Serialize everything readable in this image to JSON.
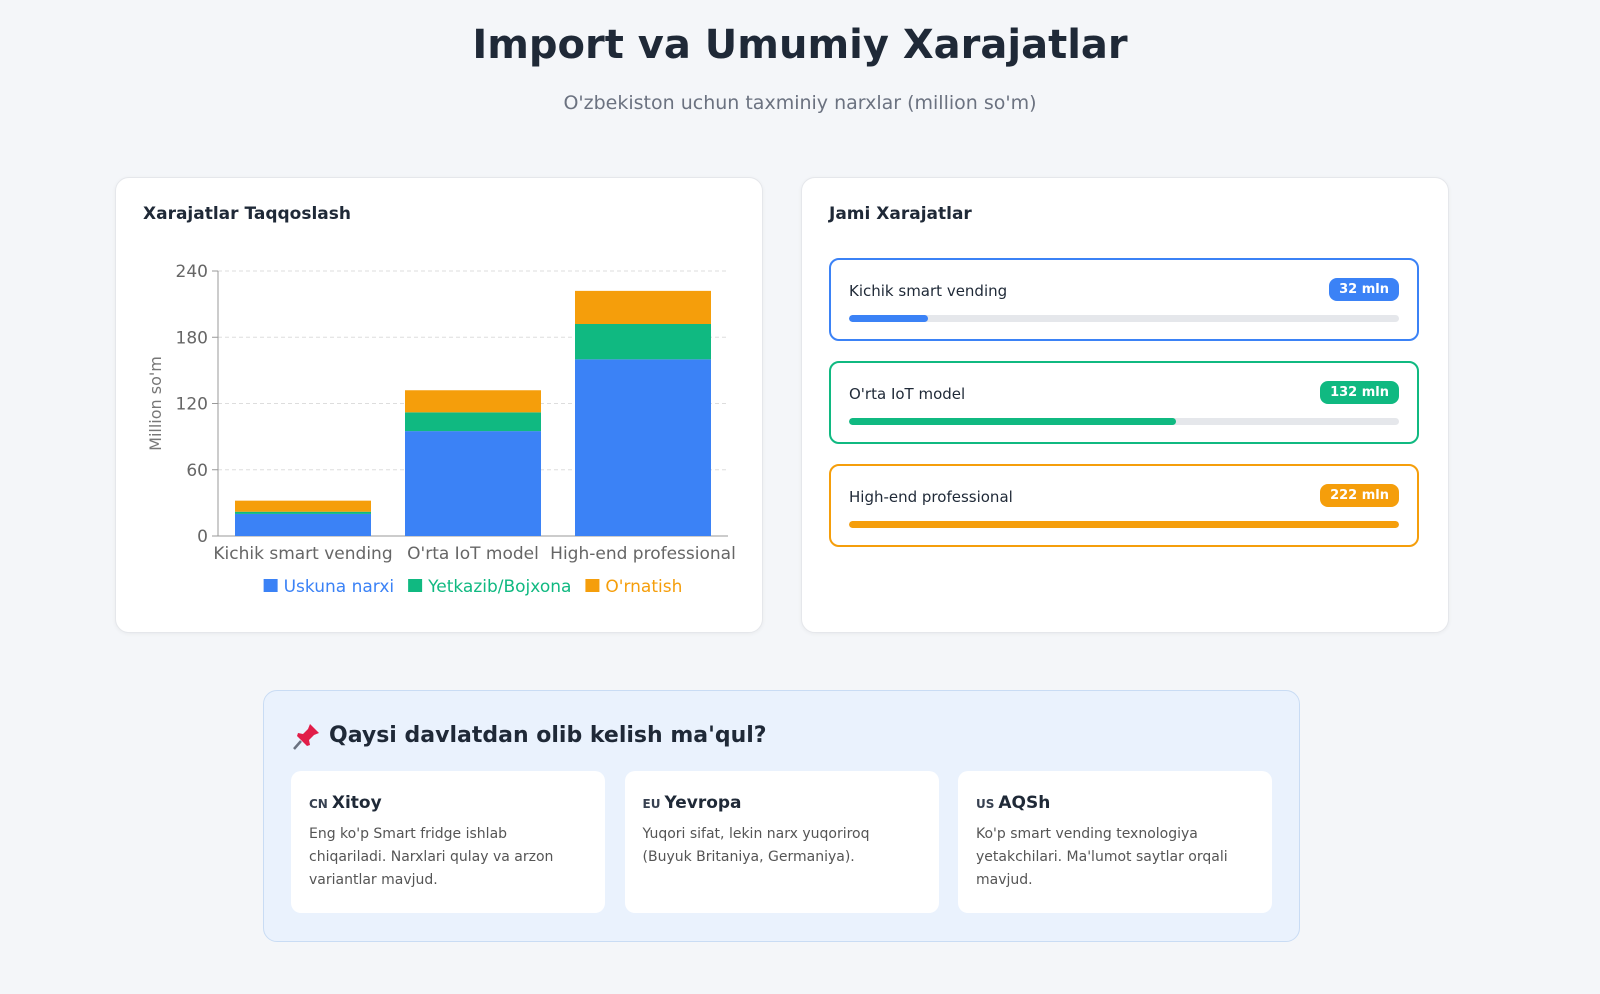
{
  "header": {
    "title": "Import va Umumiy Xarajatlar",
    "subtitle": "O'zbekiston uchun taxminiy narxlar (million so'm)"
  },
  "chart_data": {
    "type": "bar",
    "stacked": true,
    "title": "Xarajatlar Taqqoslash",
    "y_label": "Million so'm",
    "categories": [
      "Kichik smart vending",
      "O'rta IoT model",
      "High-end professional"
    ],
    "series": [
      {
        "name": "Uskuna narxi",
        "color": "#3b82f6",
        "values": [
          20,
          95,
          160
        ]
      },
      {
        "name": "Yetkazib/Bojxona",
        "color": "#10b981",
        "values": [
          2,
          17,
          32
        ]
      },
      {
        "name": "O'rnatish",
        "color": "#f59e0b",
        "values": [
          10,
          20,
          30
        ]
      }
    ],
    "ylim": [
      0,
      240
    ],
    "yticks": [
      0,
      60,
      120,
      180,
      240
    ],
    "grid": true,
    "legend": "bottom"
  },
  "totals": {
    "title": "Jami Xarajatlar",
    "items": [
      {
        "name": "Kichik smart vending",
        "value": 32,
        "value_label": "32 mln",
        "color": "#3b82f6"
      },
      {
        "name": "O'rta IoT model",
        "value": 132,
        "value_label": "132 mln",
        "color": "#10b981"
      },
      {
        "name": "High-end professional",
        "value": 222,
        "value_label": "222 mln",
        "color": "#f59e0b"
      }
    ]
  },
  "recommendation": {
    "title": "Qaysi davlatdan olib kelish ma'qul?",
    "countries": [
      {
        "code": "CN",
        "name": "Xitoy",
        "text": "Eng ko'p Smart fridge ishlab chiqariladi. Narxlari qulay va arzon variantlar mavjud."
      },
      {
        "code": "EU",
        "name": "Yevropa",
        "text": "Yuqori sifat, lekin narx yuqoriroq (Buyuk Britaniya, Germaniya)."
      },
      {
        "code": "US",
        "name": "AQSh",
        "text": "Ko'p smart vending texnologiya yetakchilari. Ma'lumot saytlar orqali mavjud."
      }
    ]
  }
}
